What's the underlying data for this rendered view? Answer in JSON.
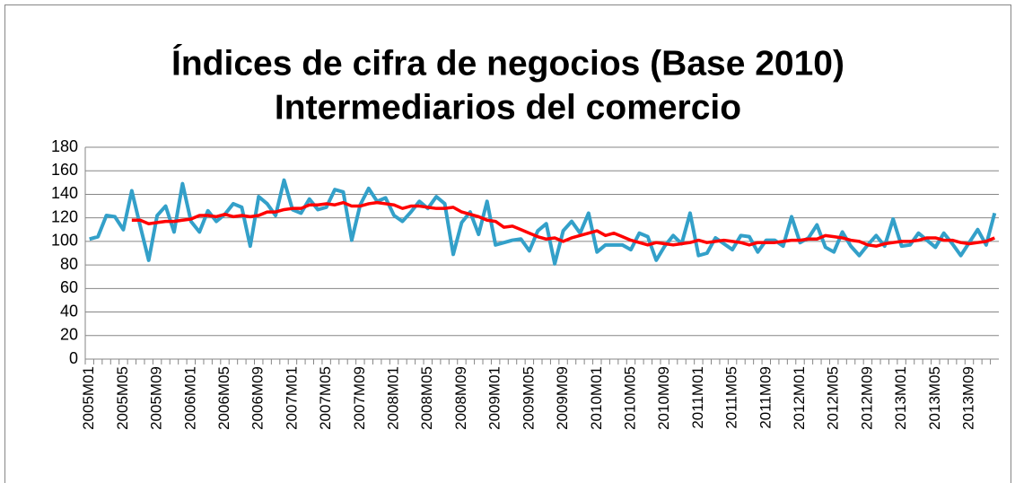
{
  "chart_data": {
    "type": "line",
    "title": [
      "Índices de cifra de negocios (Base 2010)",
      "Intermediarios del comercio"
    ],
    "categories": [
      "2005M01",
      null,
      null,
      null,
      "2005M05",
      null,
      null,
      null,
      "2005M09",
      null,
      null,
      null,
      "2006M01",
      null,
      null,
      null,
      "2006M05",
      null,
      null,
      null,
      "2006M09",
      null,
      null,
      null,
      "2007M01",
      null,
      null,
      null,
      "2007M05",
      null,
      null,
      null,
      "2007M09",
      null,
      null,
      null,
      "2008M01",
      null,
      null,
      null,
      "2008M05",
      null,
      null,
      null,
      "2008M09",
      null,
      null,
      null,
      "2009M01",
      null,
      null,
      null,
      "2009M05",
      null,
      null,
      null,
      "2009M09",
      null,
      null,
      null,
      "2010M01",
      null,
      null,
      null,
      "2010M05",
      null,
      null,
      null,
      "2010M09",
      null,
      null,
      null,
      "2011M01",
      null,
      null,
      null,
      "2011M05",
      null,
      null,
      null,
      "2011M09",
      null,
      null,
      null,
      "2012M01",
      null,
      null,
      null,
      "2012M05",
      null,
      null,
      null,
      "2012M09",
      null,
      null,
      null,
      "2013M01",
      null,
      null,
      null,
      "2013M05",
      null,
      null,
      null,
      "2013M09",
      null,
      null,
      null
    ],
    "series": [
      {
        "color": "#33a0c9",
        "values": [
          102,
          104,
          122,
          121,
          110,
          143,
          113,
          84,
          122,
          130,
          108,
          149,
          117,
          108,
          126,
          117,
          123,
          132,
          129,
          96,
          138,
          132,
          122,
          152,
          127,
          124,
          136,
          127,
          129,
          144,
          142,
          101,
          131,
          145,
          134,
          137,
          122,
          117,
          125,
          134,
          128,
          138,
          132,
          89,
          116,
          125,
          106,
          134,
          97,
          99,
          101,
          102,
          92,
          109,
          115,
          81,
          109,
          117,
          107,
          124,
          91,
          97,
          97,
          97,
          93,
          107,
          104,
          84,
          96,
          105,
          98,
          124,
          88,
          90,
          103,
          98,
          93,
          105,
          104,
          91,
          101,
          101,
          96,
          121,
          99,
          103,
          114,
          95,
          91,
          108,
          96,
          88,
          97,
          105,
          96,
          119,
          96,
          97,
          107,
          101,
          95,
          107,
          98,
          88,
          99,
          110,
          97,
          124
        ]
      },
      {
        "color": "#ff0000",
        "values": [
          null,
          null,
          null,
          null,
          null,
          118,
          118,
          115,
          116,
          117,
          117,
          118,
          119,
          122,
          122,
          121,
          123,
          121,
          122,
          121,
          122,
          125,
          125,
          127,
          128,
          128,
          131,
          131,
          132,
          131,
          133,
          130,
          130,
          132,
          133,
          132,
          131,
          128,
          130,
          130,
          129,
          128,
          128,
          129,
          125,
          123,
          121,
          118,
          117,
          112,
          113,
          110,
          107,
          104,
          102,
          103,
          100,
          103,
          105,
          107,
          109,
          105,
          107,
          104,
          101,
          99,
          97,
          99,
          98,
          97,
          98,
          99,
          101,
          99,
          100,
          101,
          100,
          99,
          97,
          99,
          99,
          99,
          100,
          101,
          101,
          102,
          102,
          105,
          104,
          103,
          101,
          100,
          97,
          96,
          98,
          99,
          100,
          100,
          101,
          103,
          103,
          101,
          101,
          99,
          98,
          99,
          100,
          103
        ]
      }
    ],
    "ylim": [
      0,
      180
    ],
    "yticks": [
      0,
      20,
      40,
      60,
      80,
      100,
      120,
      140,
      160,
      180
    ],
    "grid": true
  }
}
